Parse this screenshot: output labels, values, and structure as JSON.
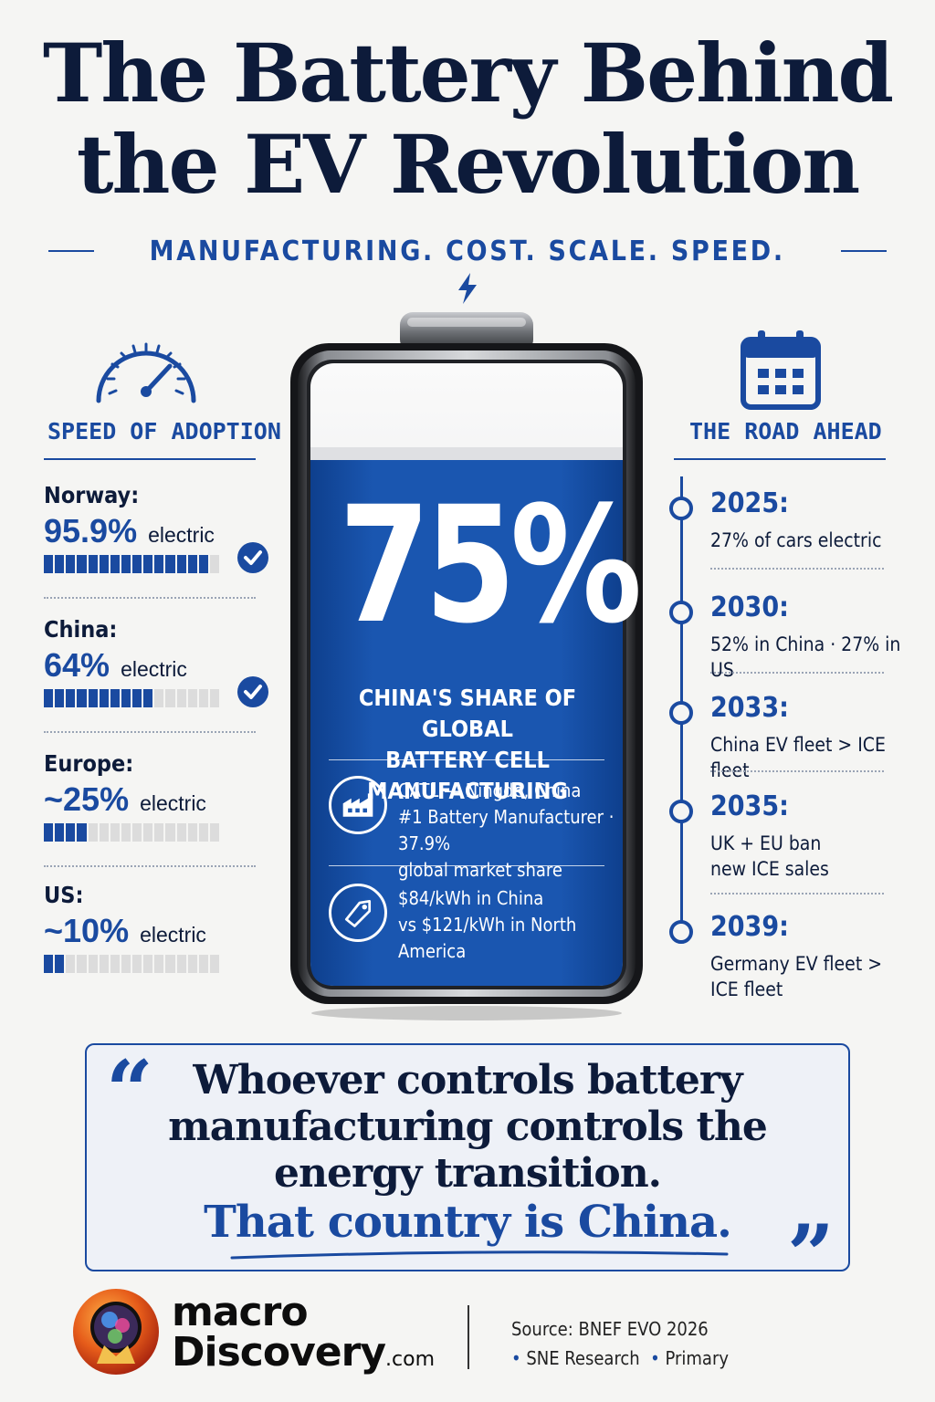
{
  "title": {
    "line1": "The Battery Behind",
    "line2": "the EV Revolution"
  },
  "tagline": "MANUFACTURING. COST. SCALE. SPEED.",
  "left": {
    "heading": "SPEED OF ADOPTION",
    "countries": [
      {
        "name": "Norway:",
        "pct": "95.9%",
        "unit": "electric",
        "share": 0.959,
        "checked": true
      },
      {
        "name": "China:",
        "pct": "64%",
        "unit": "electric",
        "share": 0.64,
        "checked": true
      },
      {
        "name": "Europe:",
        "pct": "~25%",
        "unit": "electric",
        "share": 0.25,
        "checked": false
      },
      {
        "name": "US:",
        "pct": "~10%",
        "unit": "electric",
        "share": 0.1,
        "checked": false
      }
    ]
  },
  "battery": {
    "big_pct": "75%",
    "share_line1": "CHINA'S SHARE OF GLOBAL",
    "share_line2": "BATTERY CELL MANUFACTURING",
    "catl_line1": "CATL — Ningde, China",
    "catl_line2": "#1 Battery Manufacturer · 37.9%",
    "catl_line3": "global market share",
    "cost_line1": "$84/kWh in China",
    "cost_line2": "vs $121/kWh in North America",
    "fill_colors": {
      "top": "#e9eaec",
      "body": "#1a56b0"
    }
  },
  "right": {
    "heading": "THE ROAD AHEAD",
    "timeline": [
      {
        "year": "2025:",
        "lines": [
          "27% of cars electric"
        ]
      },
      {
        "year": "2030:",
        "lines": [
          "52% in China · 27% in US"
        ]
      },
      {
        "year": "2033:",
        "lines": [
          "China EV fleet > ICE fleet"
        ]
      },
      {
        "year": "2035:",
        "lines": [
          "UK + EU ban",
          "new ICE sales"
        ]
      },
      {
        "year": "2039:",
        "lines": [
          "Germany EV fleet >",
          "ICE fleet"
        ]
      }
    ]
  },
  "quote": {
    "open": "“",
    "close": "”",
    "line1": "Whoever controls battery",
    "line2": "manufacturing controls the",
    "line3": "energy transition.",
    "emphasis": "That country is China."
  },
  "footer": {
    "logo_line1": "macro",
    "logo_line2": "Discovery",
    "logo_suffix": ".com",
    "source_line1": "Source: BNEF EVO 2026",
    "source_item1": "SNE Research",
    "source_item2": "Primary"
  },
  "colors": {
    "navy": "#0d1b3a",
    "accent_blue": "#1a4aa0",
    "background": "#f5f5f3"
  },
  "icons": [
    "lightning-bolt-icon",
    "speedometer-icon",
    "calendar-icon",
    "check-icon",
    "factory-icon",
    "price-tag-icon",
    "quote-icon"
  ]
}
